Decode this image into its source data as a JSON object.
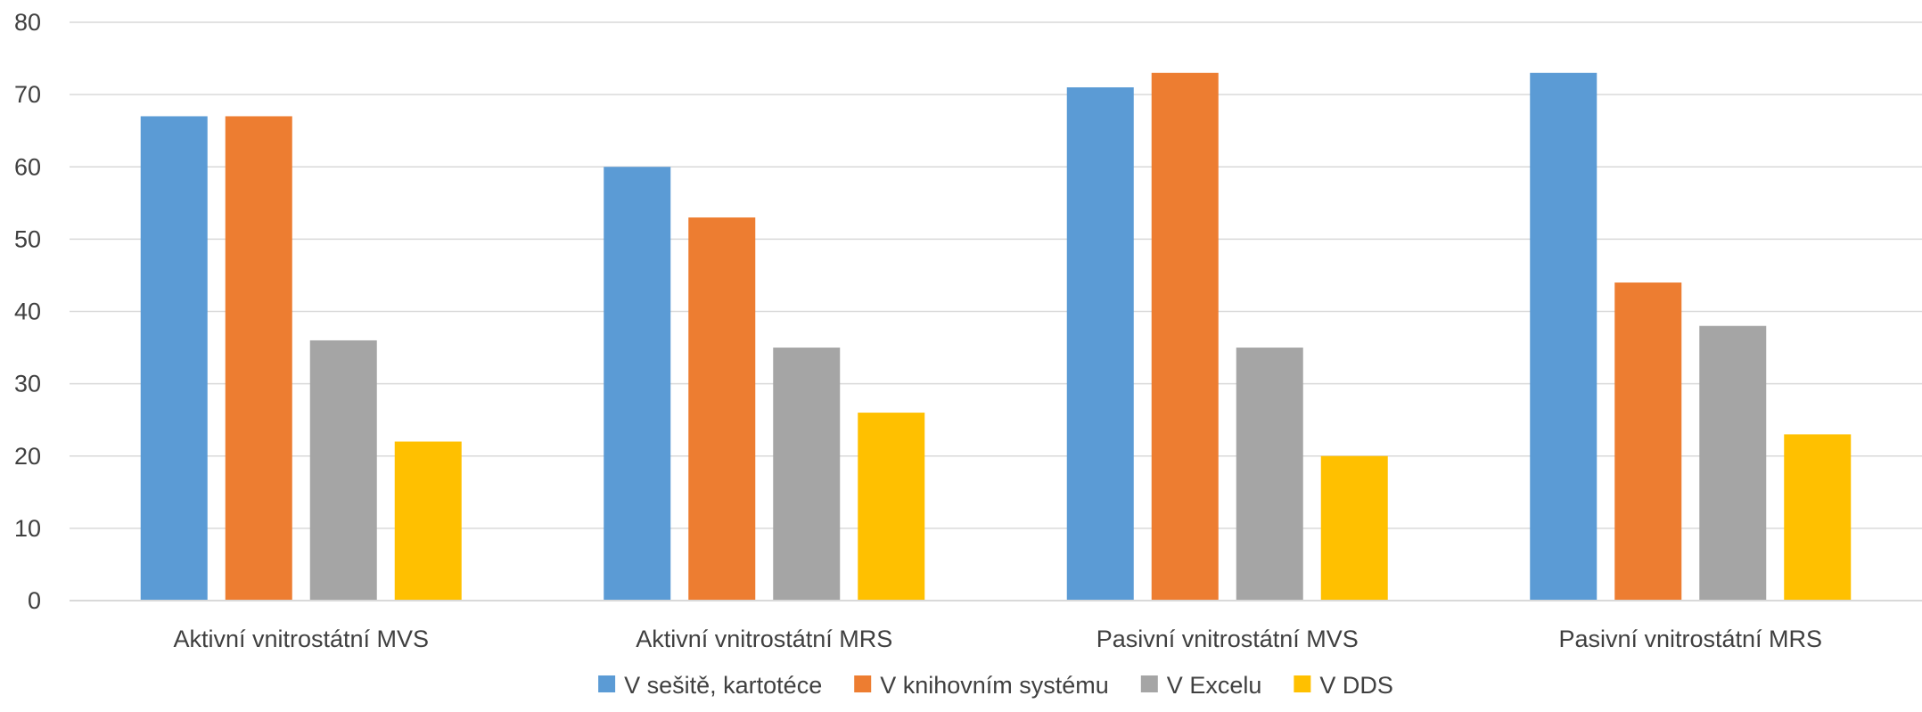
{
  "chart_data": {
    "type": "bar",
    "title": "",
    "xlabel": "",
    "ylabel": "",
    "ylim": [
      0,
      80
    ],
    "yticks": [
      0,
      10,
      20,
      30,
      40,
      50,
      60,
      70,
      80
    ],
    "grid": true,
    "legend_position": "bottom",
    "categories": [
      "Aktivní vnitrostátní MVS",
      "Aktivní vnitrostátní MRS",
      "Pasivní vnitrostátní MVS",
      "Pasivní vnitrostátní MRS"
    ],
    "series": [
      {
        "name": "V sešitě, kartotéce",
        "color": "#5B9BD5",
        "values": [
          67,
          60,
          71,
          73
        ]
      },
      {
        "name": "V knihovním systému",
        "color": "#ED7D31",
        "values": [
          67,
          53,
          73,
          44
        ]
      },
      {
        "name": "V Excelu",
        "color": "#A5A5A5",
        "values": [
          36,
          35,
          35,
          38
        ]
      },
      {
        "name": "V DDS",
        "color": "#FFC000",
        "values": [
          22,
          26,
          20,
          23
        ]
      }
    ]
  }
}
